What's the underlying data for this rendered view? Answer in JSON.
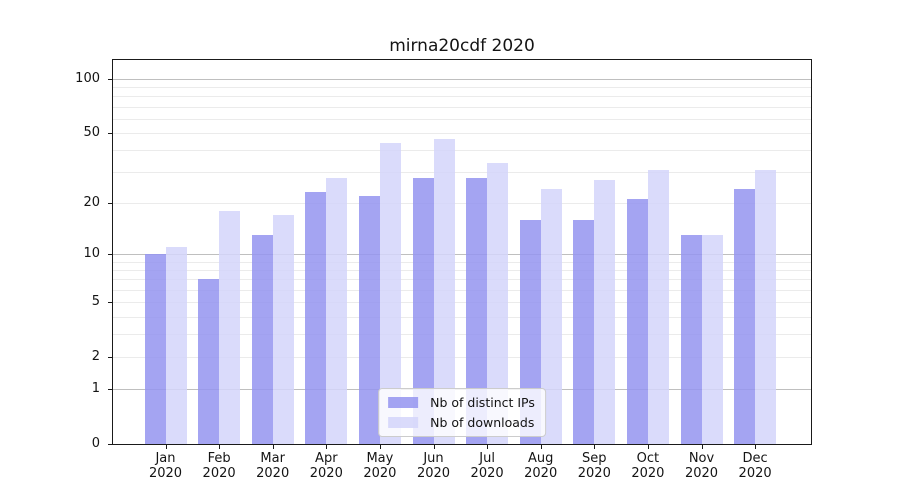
{
  "title": "mirna20cdf 2020",
  "chart_data": {
    "type": "bar",
    "title": "mirna20cdf 2020",
    "categories": [
      "Jan",
      "Feb",
      "Mar",
      "Apr",
      "May",
      "Jun",
      "Jul",
      "Aug",
      "Sep",
      "Oct",
      "Nov",
      "Dec"
    ],
    "category_year": "2020",
    "series": [
      {
        "name": "Nb of distinct IPs",
        "color_hex": "#a4a4f3",
        "color": "rgba(148,148,240,0.85)",
        "values": [
          10,
          7,
          13,
          23,
          22,
          28,
          28,
          16,
          16,
          21,
          13,
          24
        ]
      },
      {
        "name": "Nb of downloads",
        "color_hex": "#dadbfa",
        "color": "rgba(212,213,250,0.85)",
        "values": [
          11,
          18,
          17,
          28,
          44,
          46,
          34,
          24,
          27,
          31,
          13,
          31
        ]
      }
    ],
    "yscale": "log1p",
    "ylim": [
      0,
      127
    ],
    "yticks": [
      0,
      1,
      2,
      5,
      10,
      20,
      50,
      100
    ],
    "grid_minor": [
      2,
      3,
      4,
      5,
      6,
      7,
      8,
      9,
      20,
      30,
      40,
      50,
      60,
      70,
      80,
      90
    ],
    "grid_major": [
      1,
      10,
      100
    ],
    "grid": true,
    "legend_position": "lower center",
    "xlabel": "",
    "ylabel": ""
  },
  "legend": {
    "items": [
      {
        "label": "Nb of distinct IPs"
      },
      {
        "label": "Nb of downloads"
      }
    ]
  },
  "colors": {
    "background": "#ffffff",
    "bar_dark": "#a4a4f3",
    "bar_light": "#dadbfa",
    "grid_major": "#bfbfbf",
    "grid_minor": "#ebebeb",
    "spine": "#1a1a1a",
    "text": "#141414",
    "legend_border": "#cccccc"
  }
}
